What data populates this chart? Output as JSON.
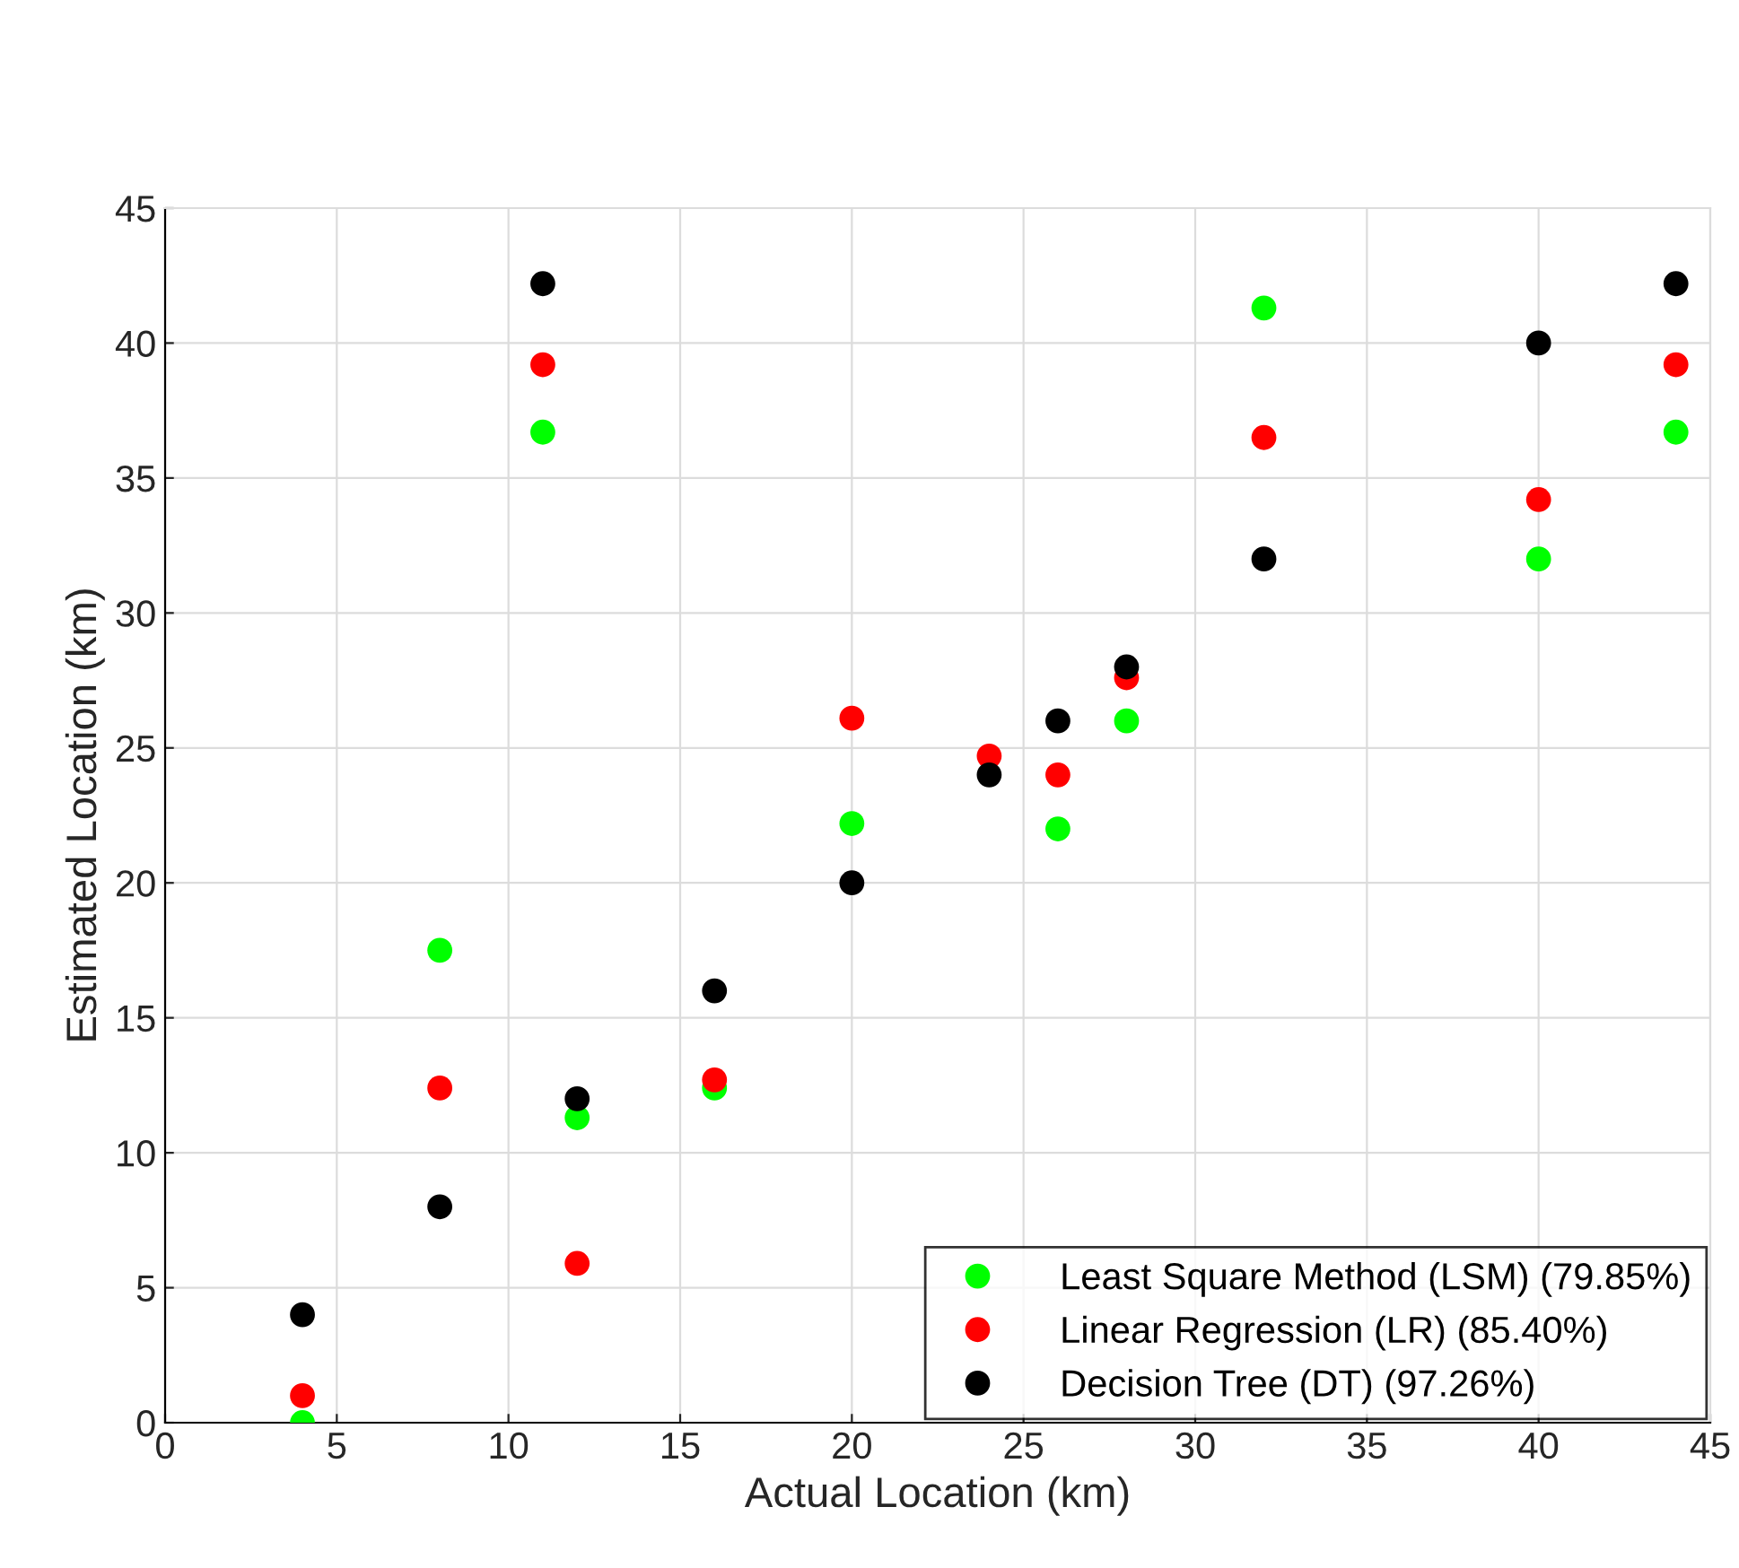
{
  "chart_data": {
    "type": "scatter",
    "xlabel": "Actual Location (km)",
    "ylabel": "Estimated Location (km)",
    "x": [
      4,
      8,
      11,
      12,
      16,
      20,
      24,
      26,
      28,
      32,
      40,
      44
    ],
    "series": [
      {
        "name": "Least Square Method (LSM) (79.85%)",
        "color": "#00ff00",
        "values": [
          0,
          17.5,
          36.7,
          11.3,
          12.4,
          22.2,
          null,
          22,
          26,
          41.3,
          32,
          36.7
        ]
      },
      {
        "name": "Linear Regression (LR) (85.40%)",
        "color": "#ff0000",
        "values": [
          1,
          12.4,
          39.2,
          5.9,
          12.7,
          26.1,
          24.7,
          24,
          27.6,
          36.5,
          34.2,
          39.2
        ]
      },
      {
        "name": "Decision Tree (DT) (97.26%)",
        "color": "#000000",
        "values": [
          4,
          8,
          42.2,
          12,
          16,
          20,
          24,
          26,
          28,
          32,
          40,
          42.2
        ]
      }
    ],
    "xlim": [
      0,
      45
    ],
    "xticks": [
      0,
      5,
      10,
      15,
      20,
      25,
      30,
      35,
      40,
      45
    ],
    "ylim": [
      0,
      45
    ],
    "yticks": [
      0,
      5,
      10,
      15,
      20,
      25,
      30,
      35,
      40,
      45
    ],
    "grid": true,
    "legend": "bottom right",
    "marker": "circle"
  }
}
